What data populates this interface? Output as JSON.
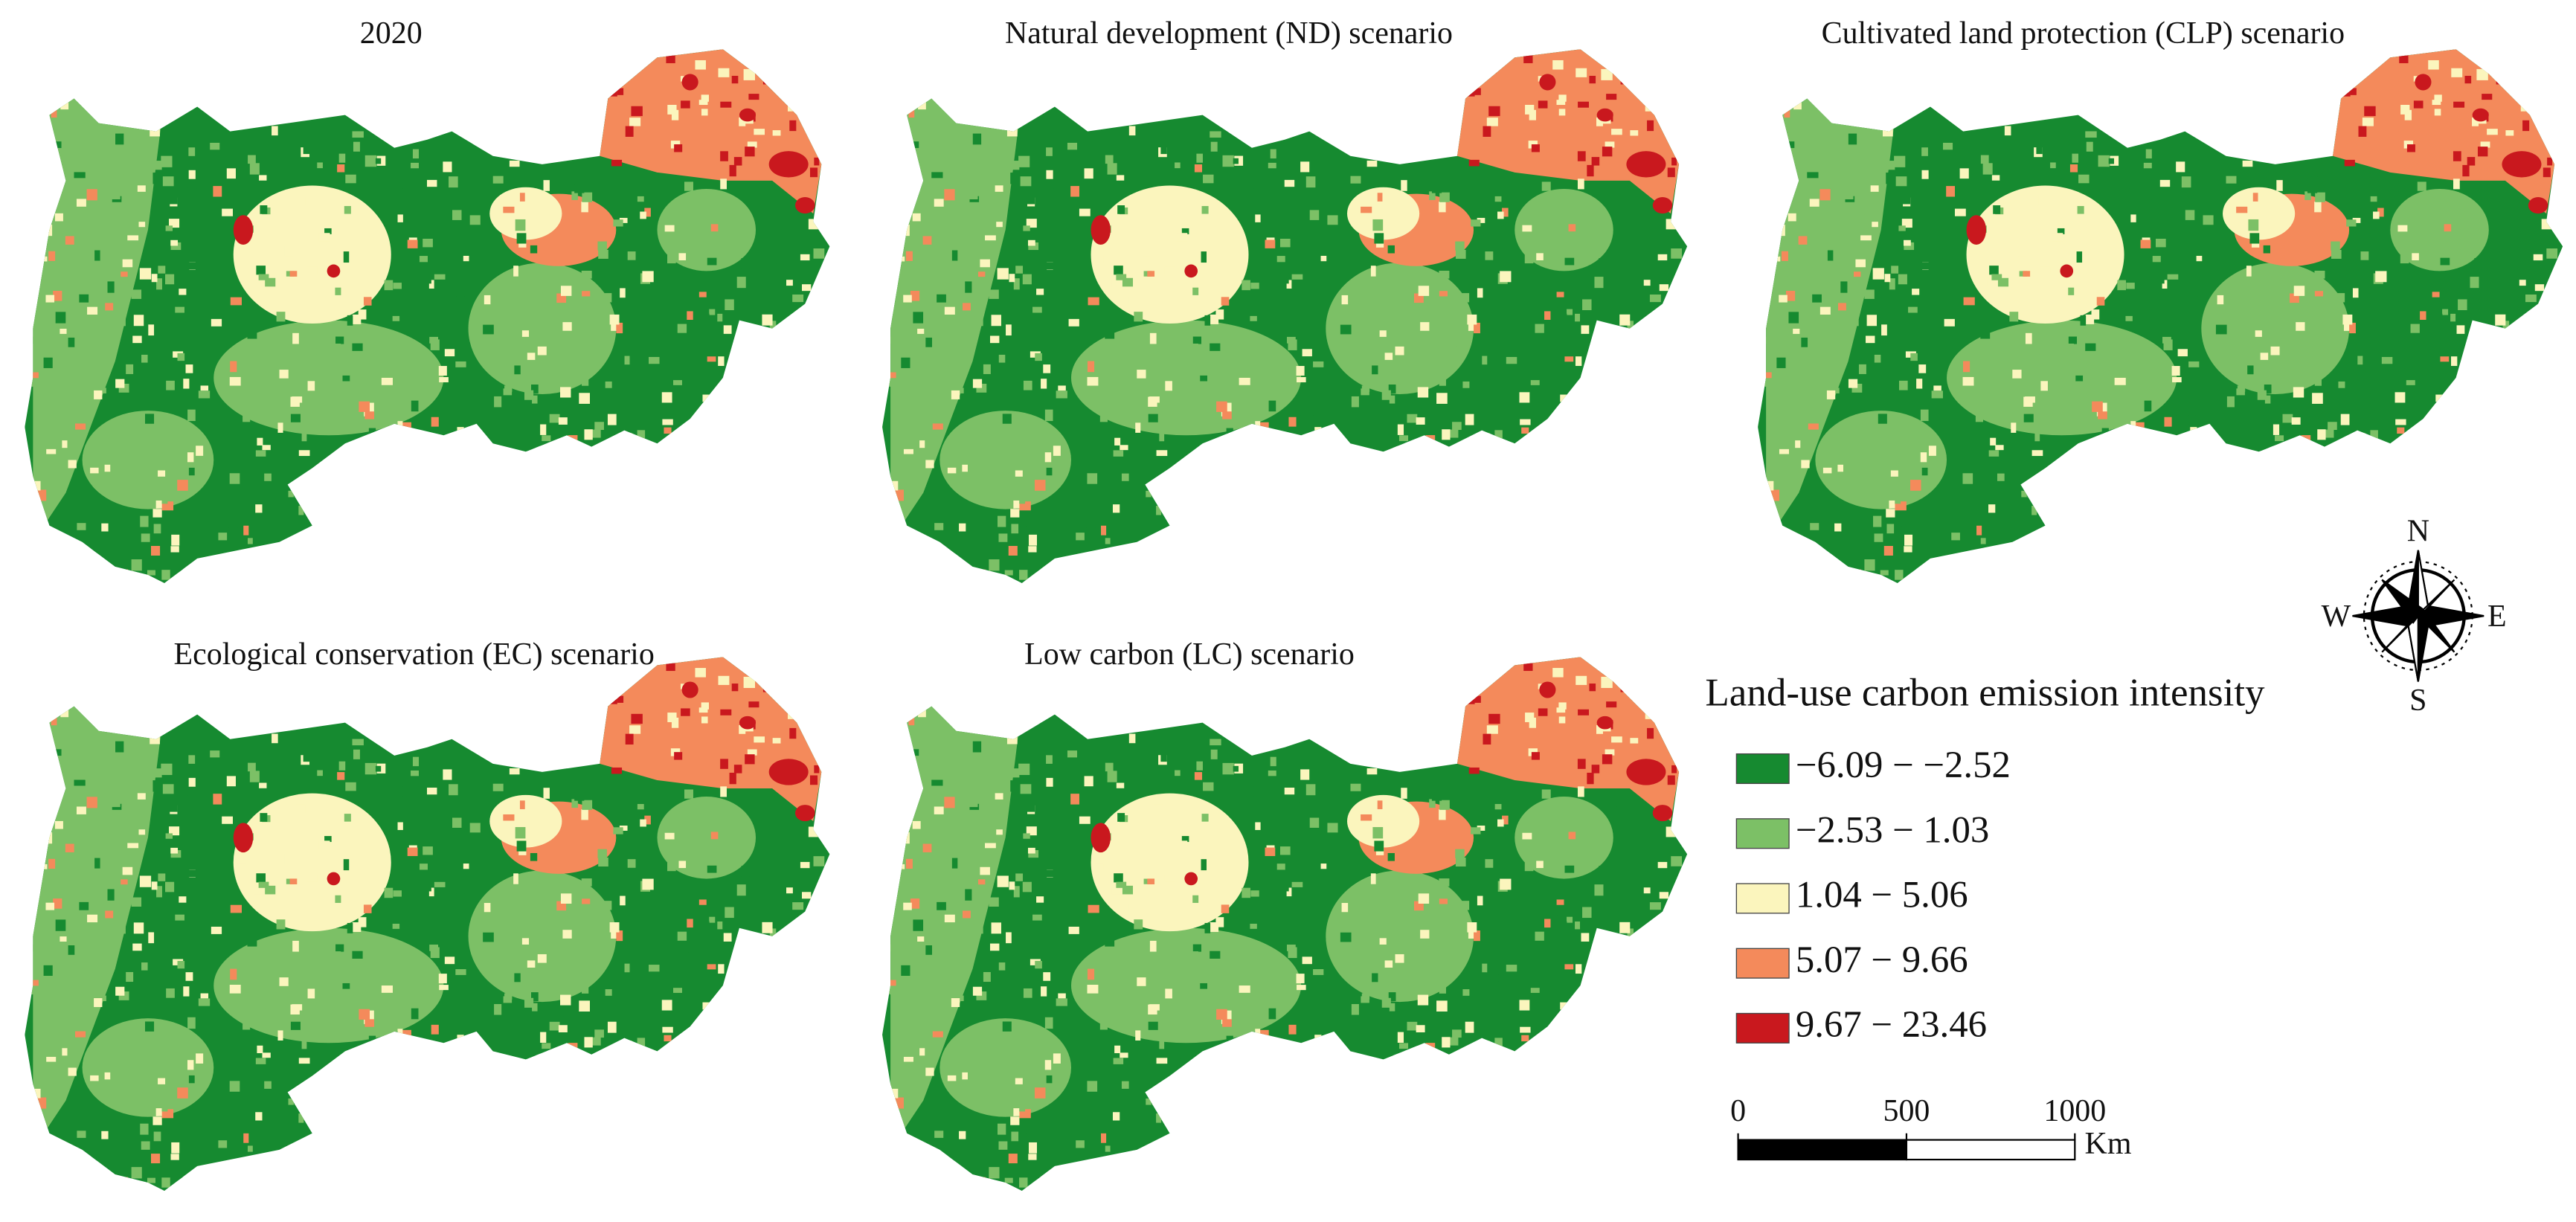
{
  "panels": [
    {
      "title": "2020"
    },
    {
      "title": "Natural development (ND) scenario"
    },
    {
      "title": "Cultivated land protection (CLP) scenario"
    },
    {
      "title": "Ecological conservation (EC) scenario"
    },
    {
      "title": "Low carbon (LC) scenario"
    }
  ],
  "legend": {
    "title": "Land-use carbon emission intensity",
    "items": [
      {
        "label": "−6.09 − −2.52",
        "color": "#168a30"
      },
      {
        "label": "−2.53 − 1.03",
        "color": "#7cc066"
      },
      {
        "label": "1.04 − 5.06",
        "color": "#fbf5bd"
      },
      {
        "label": "5.07 − 9.66",
        "color": "#f48a5b"
      },
      {
        "label": "9.67 − 23.46",
        "color": "#c9181e"
      }
    ]
  },
  "scale_bar": {
    "ticks": [
      0,
      500,
      1000
    ],
    "unit": "Km"
  },
  "compass": {
    "north": "N",
    "east": "E",
    "south": "S",
    "west": "W"
  }
}
